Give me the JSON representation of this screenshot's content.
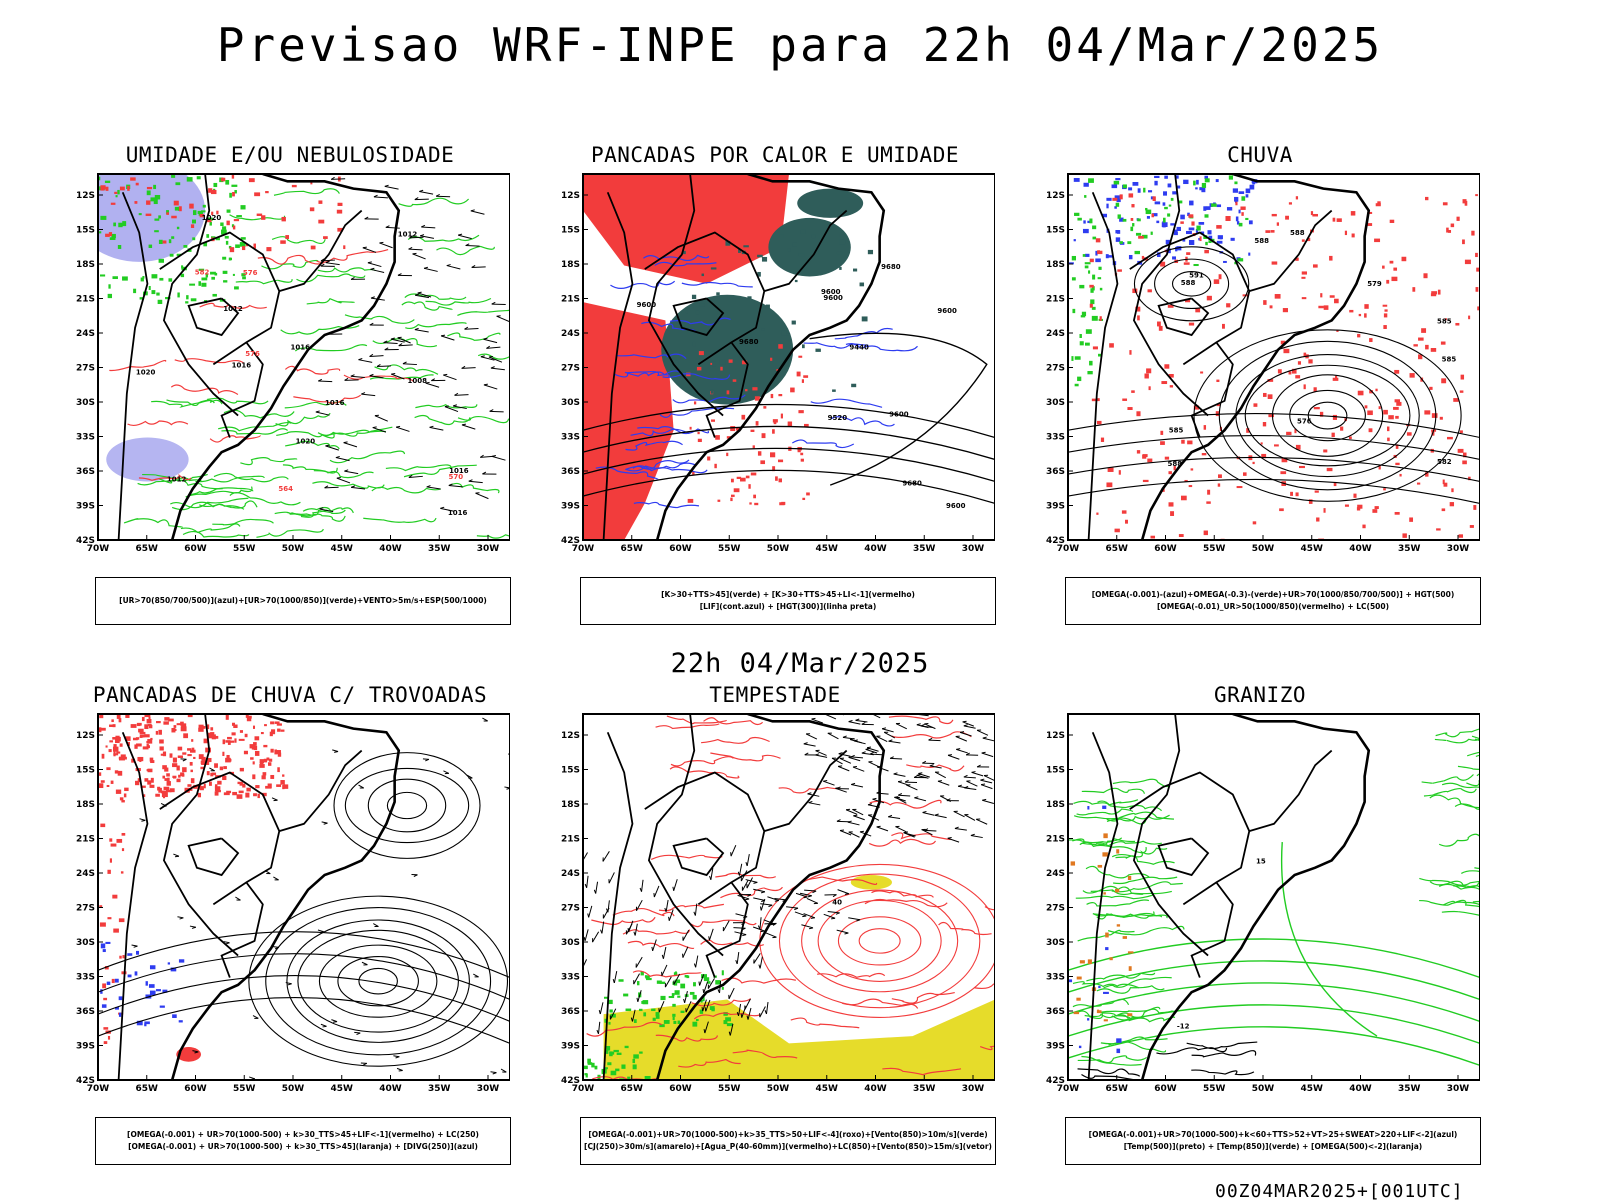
{
  "main_title": "Previsao WRF-INPE  para 22h 04/Mar/2025",
  "subtitle": "22h 04/Mar/2025",
  "footer": "00Z04MAR2025+[001UTC]",
  "axes": {
    "lat_labels": [
      "12S",
      "15S",
      "18S",
      "21S",
      "24S",
      "27S",
      "30S",
      "33S",
      "36S",
      "39S",
      "42S"
    ],
    "lon_labels": [
      "70W",
      "65W",
      "60W",
      "55W",
      "50W",
      "45W",
      "40W",
      "35W",
      "30W"
    ]
  },
  "colors": {
    "red": "#f23c3c",
    "blue": "#2e3cf0",
    "green": "#22cc22",
    "lavender": "#a8a8ee",
    "darkteal": "#2f5d5a",
    "yellow": "#e6dc2a",
    "orange": "#e07820",
    "contour": "#000000"
  },
  "panels": [
    {
      "title": "UMIDADE E/OU NEBULOSIDADE",
      "caption": [
        "[UR>70(850/700/500)](azul)+[UR>70(1000/850)](verde)+VENTO>5m/s+ESP(500/1000)"
      ],
      "contour_labels": [
        "1016",
        "1012",
        "1012",
        "1008",
        "1012",
        "1016",
        "1020",
        "1020",
        "1016",
        "1016",
        "1020",
        "1016",
        "576",
        "570",
        "582",
        "576",
        "564"
      ]
    },
    {
      "title": "PANCADAS POR CALOR E UMIDADE",
      "caption": [
        "[K>30+TTS>45](verde) + [K>30+TTS>45+LI<-1](vermelho)",
        "[LIF](cont.azul) + [HGT(300)](linha preta)"
      ],
      "contour_labels": [
        "9600",
        "9600",
        "9600",
        "9680",
        "9680",
        "9600",
        "9440",
        "9520",
        "9680",
        "9600",
        "9600"
      ]
    },
    {
      "title": "CHUVA",
      "caption": [
        "[OMEGA(-0.001)-(azul)+OMEGA(-0.3)-(verde)+UR>70(1000/850/700/500)] + HGT(500)",
        "[OMEGA(-0.01)_UR>50(1000/850)(vermelho) + LC(500)"
      ],
      "contour_labels": [
        "585",
        "588",
        "588",
        "588",
        "591",
        "588",
        "585",
        "585",
        "582",
        "579",
        "576"
      ]
    },
    {
      "title": "PANCADAS DE CHUVA C/ TROVOADAS",
      "caption": [
        "[OMEGA(-0.001) + UR>70(1000-500) + k>30_TTS>45+LIF<-1](vermelho) + LC(250)",
        "[OMEGA(-0.001) + UR>70(1000-500) + k>30_TTS>45](laranja) + [DIVG(250)](azul)"
      ],
      "contour_labels": []
    },
    {
      "title": "TEMPESTADE",
      "caption": [
        "[OMEGA(-0.001)+UR>70(1000-500)+k>35_TTS>50+LIF<-4](roxo)+[Vento(850)>10m/s](verde)",
        "[CJ(250)>30m/s](amarelo)+[Agua_P(40-60mm)](vermelho)+LC(850)+[Vento(850)>15m/s](vetor)"
      ],
      "contour_labels": [
        "40"
      ]
    },
    {
      "title": "GRANIZO",
      "caption": [
        "[OMEGA(-0.001)+UR>70(1000-500)+k<60+TTS>52+VT>25+SWEAT>220+LIF<-2](azul)",
        "[Temp(500)](preto) + [Temp(850)](verde) + [OMEGA(500)<-2](laranja)"
      ],
      "contour_labels": [
        "-12",
        "15"
      ]
    }
  ]
}
